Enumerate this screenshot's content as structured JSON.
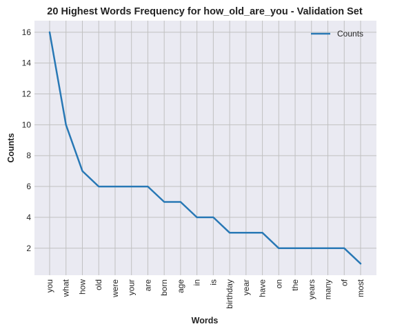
{
  "chart_data": {
    "type": "line",
    "title": "20 Highest Words Frequency for how_old_are_you - Validation Set",
    "xlabel": "Words",
    "ylabel": "Counts",
    "categories": [
      "you",
      "what",
      "how",
      "old",
      "were",
      "your",
      "are",
      "born",
      "age",
      "in",
      "is",
      "birthday",
      "year",
      "have",
      "on",
      "the",
      "years",
      "many",
      "of",
      "most"
    ],
    "series": [
      {
        "name": "Counts",
        "color": "#2878b5",
        "values": [
          16,
          10,
          7,
          6,
          6,
          6,
          6,
          5,
          5,
          4,
          4,
          3,
          3,
          3,
          2,
          2,
          2,
          2,
          2,
          1
        ]
      }
    ],
    "ylim": [
      0.25,
      16.75
    ],
    "yticks": [
      2,
      4,
      6,
      8,
      10,
      12,
      14,
      16
    ],
    "grid": true,
    "legend_position": "top-right",
    "colors": {
      "plot_bg": "#eaeaf2",
      "grid": "#c0c0c0",
      "line": "#2878b5"
    }
  }
}
